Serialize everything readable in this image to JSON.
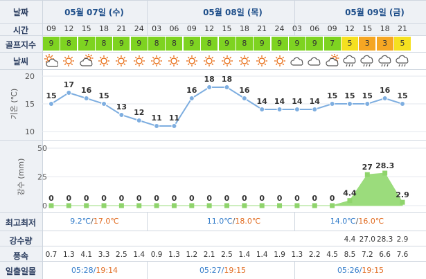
{
  "labels": {
    "date": "날짜",
    "time": "시간",
    "golf": "골프지수",
    "weather": "날씨",
    "temp_axis": "기온 (℃)",
    "rain_axis": "강수 (mm)",
    "minmax": "최고최저",
    "rain_amount": "강수량",
    "wind": "풍속",
    "sun": "일출일몰"
  },
  "dates": [
    {
      "label": "05월 07일 (수)"
    },
    {
      "label": "05월 08일 (목)"
    },
    {
      "label": "05월 09일 (금)"
    }
  ],
  "times": [
    "09",
    "12",
    "15",
    "18",
    "21",
    "24",
    "03",
    "06",
    "09",
    "12",
    "15",
    "18",
    "21",
    "24",
    "03",
    "06",
    "09",
    "12",
    "15",
    "18",
    "21"
  ],
  "golf": [
    {
      "v": "9",
      "c": "#7ed321"
    },
    {
      "v": "8",
      "c": "#7ed321"
    },
    {
      "v": "7",
      "c": "#7ed321"
    },
    {
      "v": "8",
      "c": "#7ed321"
    },
    {
      "v": "9",
      "c": "#7ed321"
    },
    {
      "v": "9",
      "c": "#7ed321"
    },
    {
      "v": "8",
      "c": "#7ed321"
    },
    {
      "v": "8",
      "c": "#7ed321"
    },
    {
      "v": "9",
      "c": "#7ed321"
    },
    {
      "v": "8",
      "c": "#7ed321"
    },
    {
      "v": "9",
      "c": "#7ed321"
    },
    {
      "v": "8",
      "c": "#7ed321"
    },
    {
      "v": "9",
      "c": "#7ed321"
    },
    {
      "v": "9",
      "c": "#7ed321"
    },
    {
      "v": "9",
      "c": "#7ed321"
    },
    {
      "v": "9",
      "c": "#7ed321"
    },
    {
      "v": "7",
      "c": "#7ed321"
    },
    {
      "v": "5",
      "c": "#f5e020"
    },
    {
      "v": "3",
      "c": "#f5a623"
    },
    {
      "v": "3",
      "c": "#f5a623"
    },
    {
      "v": "5",
      "c": "#f5e020"
    }
  ],
  "weather_icons": [
    "partly-sunny-icon",
    "sun-icon",
    "partly-cloudy-icon",
    "sun-icon",
    "sun-icon",
    "sun-icon",
    "sun-icon",
    "sun-icon",
    "sun-icon",
    "sun-icon",
    "sun-icon",
    "sun-icon",
    "sun-icon",
    "sun-icon",
    "cloud-icon",
    "cloud-icon",
    "partly-cloudy-icon",
    "rain-icon",
    "rain-icon",
    "rain-icon",
    "rain-icon"
  ],
  "chart_data": [
    {
      "type": "line",
      "ylabel": "기온 (℃)",
      "ylim": [
        10,
        20
      ],
      "yticks": [
        10,
        15,
        20
      ],
      "x": [
        "09",
        "12",
        "15",
        "18",
        "21",
        "24",
        "03",
        "06",
        "09",
        "12",
        "15",
        "18",
        "21",
        "24",
        "03",
        "06",
        "09",
        "12",
        "15",
        "18",
        "21"
      ],
      "series": [
        {
          "values": [
            15,
            17,
            16,
            15,
            13,
            12,
            11,
            11,
            16,
            18,
            18,
            16,
            14,
            14,
            14,
            14,
            15,
            15,
            15,
            16,
            15
          ]
        }
      ],
      "color": "#7eaee0"
    },
    {
      "type": "area",
      "ylabel": "강수 (mm)",
      "ylim": [
        0,
        50
      ],
      "yticks": [
        0,
        25,
        50
      ],
      "x": [
        "09",
        "12",
        "15",
        "18",
        "21",
        "24",
        "03",
        "06",
        "09",
        "12",
        "15",
        "18",
        "21",
        "24",
        "03",
        "06",
        "09",
        "12",
        "15",
        "18",
        "21"
      ],
      "series": [
        {
          "values": [
            0,
            0,
            0,
            0,
            0,
            0,
            0,
            0,
            0,
            0,
            0,
            0,
            0,
            0,
            0,
            0,
            0,
            4.4,
            27,
            28.3,
            2.9
          ]
        }
      ],
      "data_labels": [
        "0",
        "0",
        "0",
        "0",
        "0",
        "0",
        "0",
        "0",
        "0",
        "0",
        "0",
        "0",
        "0",
        "0",
        "0",
        "0",
        "0",
        "4.4",
        "27",
        "28.3",
        "2.9"
      ],
      "color": "#9bdc7c"
    }
  ],
  "minmax": [
    {
      "min": "9.2℃",
      "max": "17.0℃"
    },
    {
      "min": "11.0℃",
      "max": "18.0℃"
    },
    {
      "min": "14.0℃",
      "max": "16.0℃"
    }
  ],
  "rain_amount": [
    "",
    "",
    "",
    "",
    "",
    "",
    "",
    "",
    "",
    "",
    "",
    "",
    "",
    "",
    "",
    "",
    "",
    "4.4",
    "27.0",
    "28.3",
    "2.9"
  ],
  "wind": [
    "0.7",
    "1.3",
    "4.1",
    "3.3",
    "2.5",
    "1.4",
    "0.9",
    "1.3",
    "1.2",
    "2.1",
    "2.5",
    "1.4",
    "1.4",
    "1.9",
    "1.3",
    "2.2",
    "4.5",
    "8.5",
    "7.2",
    "6.6",
    "7.6"
  ],
  "sun": [
    {
      "rise": "05:28",
      "set": "19:14"
    },
    {
      "rise": "05:27",
      "set": "19:15"
    },
    {
      "rise": "05:26",
      "set": "19:15"
    }
  ]
}
